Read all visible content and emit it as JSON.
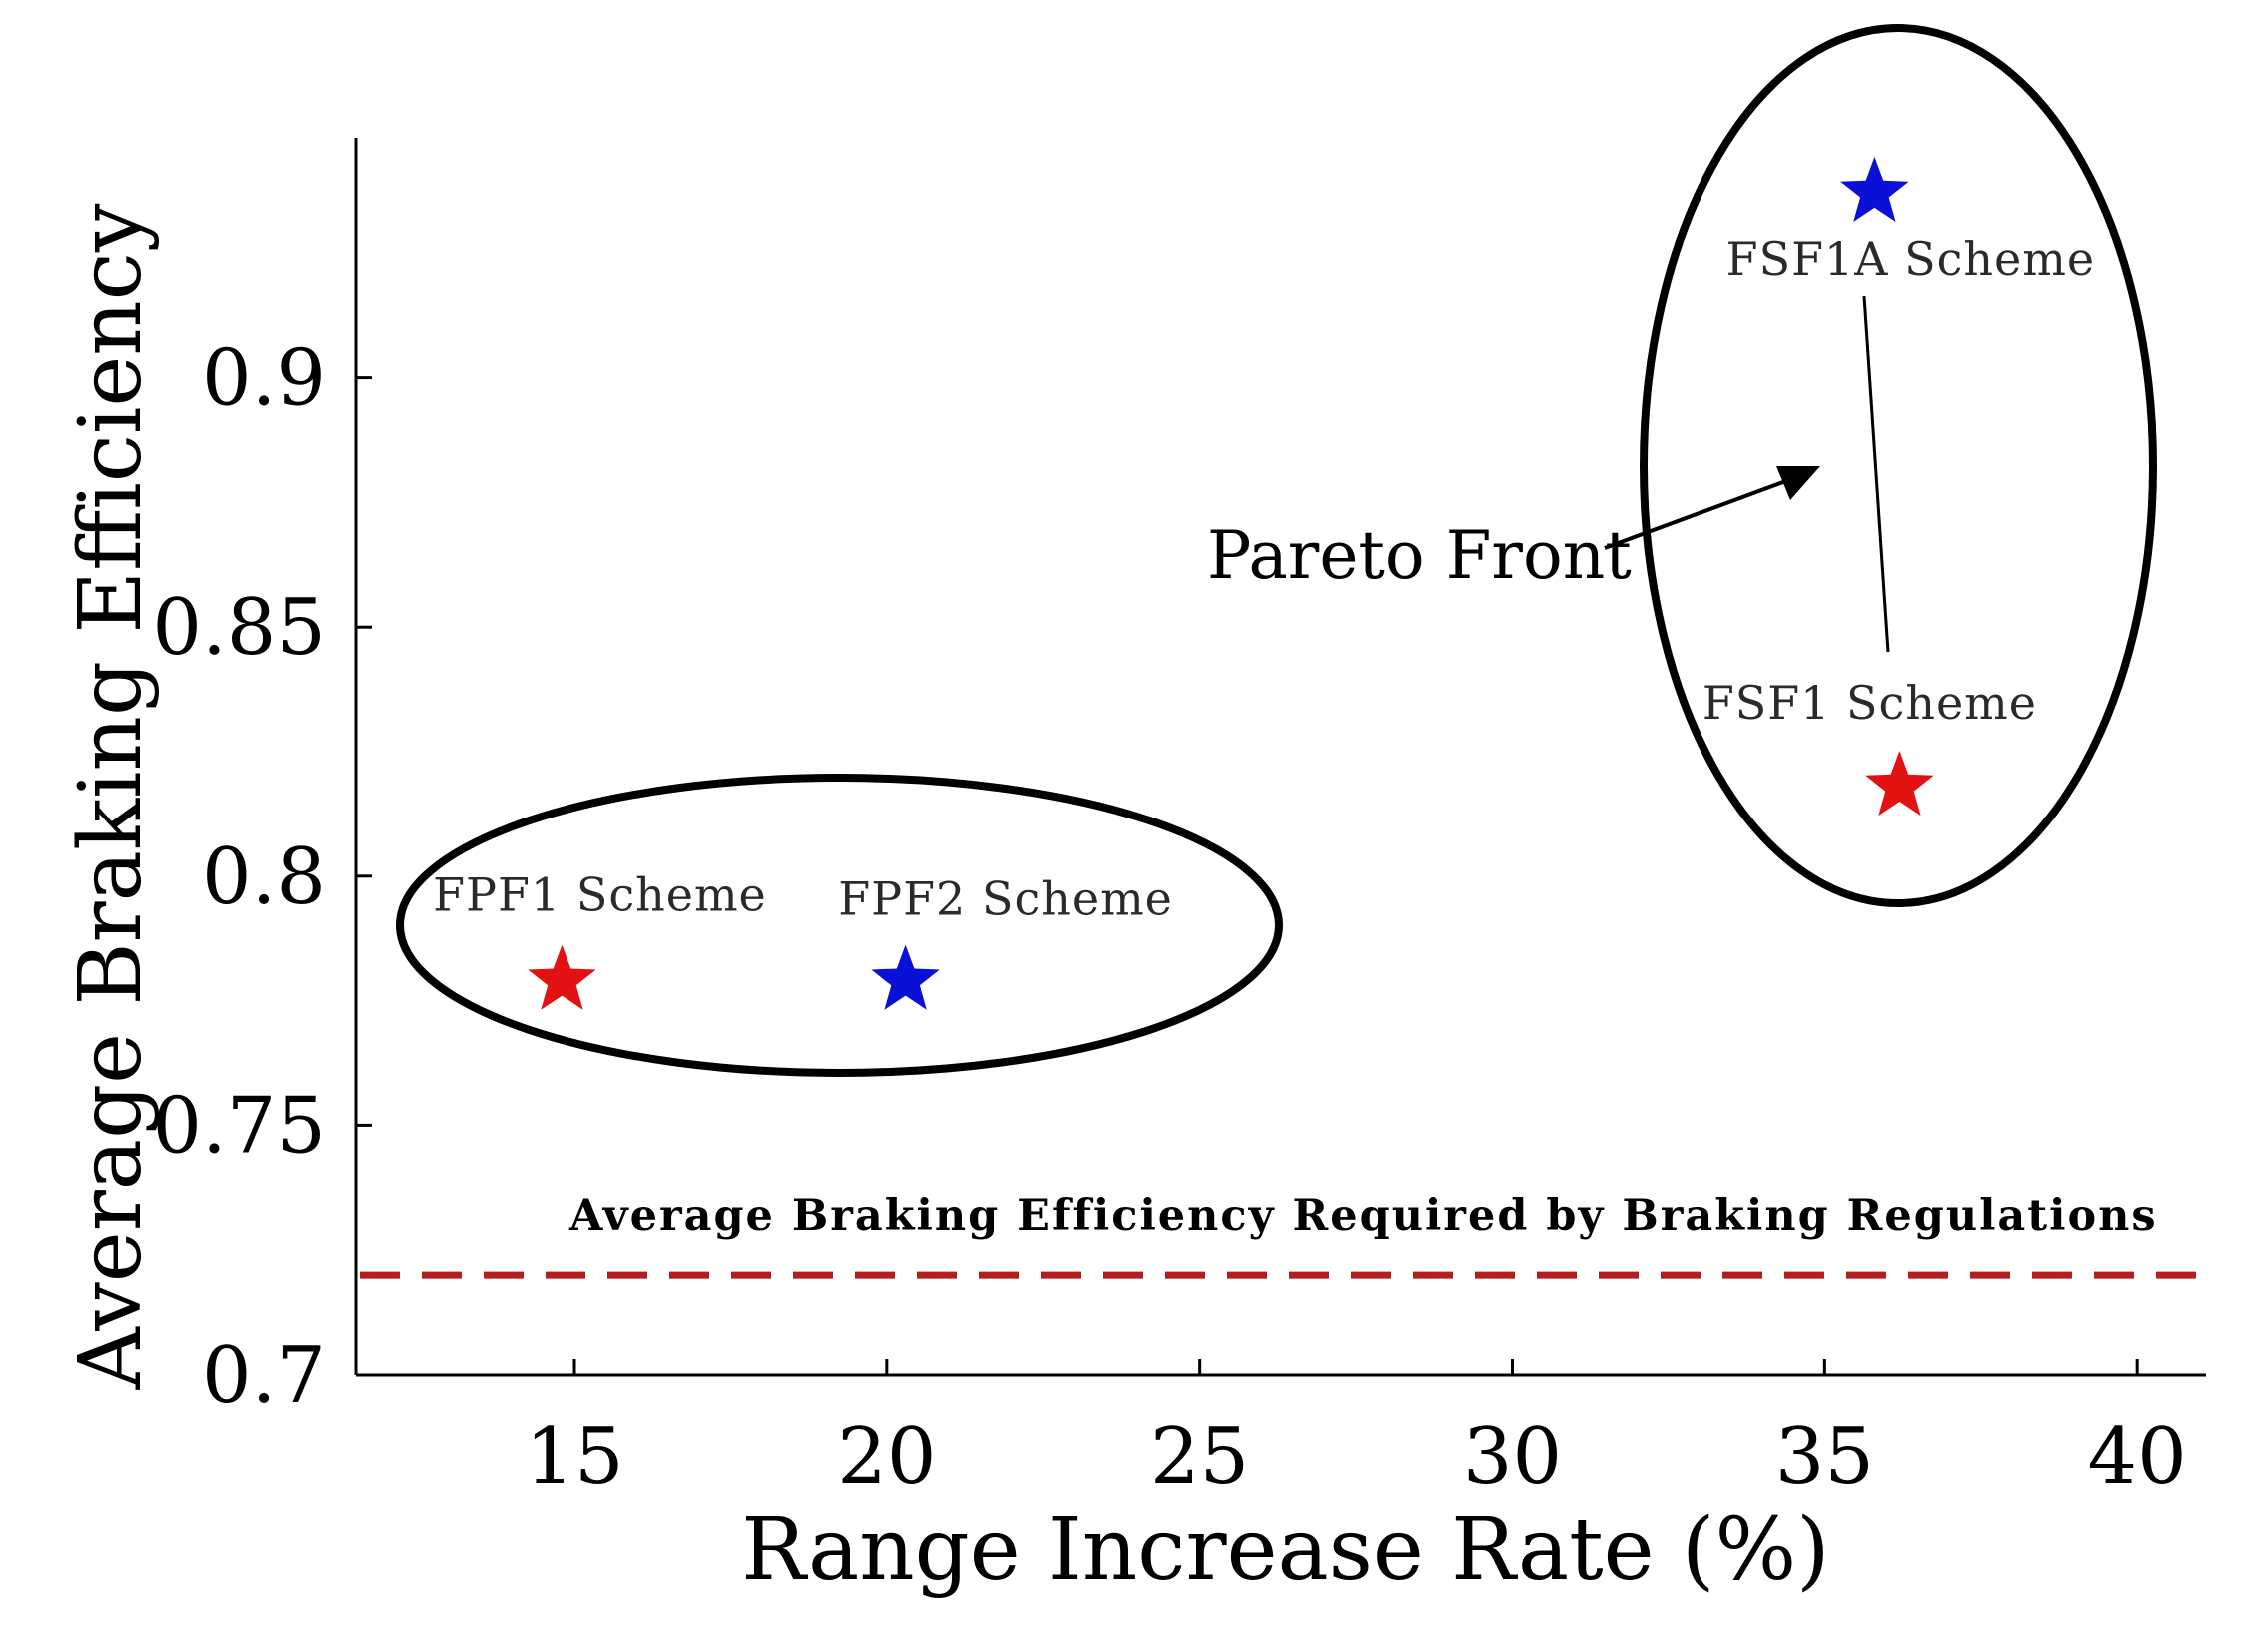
{
  "chart_data": {
    "type": "scatter",
    "title": "",
    "xlabel": "Range Increase Rate (%)",
    "ylabel": "Average Braking Efficiency",
    "xlim": [
      11.5,
      41.1
    ],
    "ylim": [
      0.7,
      0.948
    ],
    "x_ticks": [
      15,
      20,
      25,
      30,
      35,
      40
    ],
    "y_ticks": [
      0.7,
      0.75,
      0.8,
      0.85,
      0.9
    ],
    "x_tick_labels": [
      "15",
      "20",
      "25",
      "30",
      "35",
      "40"
    ],
    "y_tick_labels": [
      "0.7",
      "0.75",
      "0.8",
      "0.85",
      "0.9"
    ],
    "grid": false,
    "points": [
      {
        "name": "FPF1 Scheme",
        "x": 14.8,
        "y": 0.779,
        "color": "#e31212",
        "marker": "star"
      },
      {
        "name": "FPF2 Scheme",
        "x": 20.3,
        "y": 0.779,
        "color": "#0a10d6",
        "marker": "star"
      },
      {
        "name": "FSF1A Scheme",
        "x": 35.8,
        "y": 0.937,
        "color": "#0a10d6",
        "marker": "star"
      },
      {
        "name": "FSF1 Scheme",
        "x": 36.2,
        "y": 0.818,
        "color": "#e31212",
        "marker": "star"
      }
    ],
    "reference_line": {
      "label": "Average Braking Efficiency Required by Braking Regulations",
      "y": 0.72,
      "color": "#b51c1c",
      "style": "dashed"
    },
    "annotations": [
      {
        "text": "Pareto Front",
        "points_to": "FSF1A Scheme to FSF1 Scheme"
      }
    ],
    "groups": [
      {
        "members": [
          "FPF1 Scheme",
          "FPF2 Scheme"
        ]
      },
      {
        "members": [
          "FSF1A Scheme",
          "FSF1 Scheme"
        ]
      }
    ]
  }
}
